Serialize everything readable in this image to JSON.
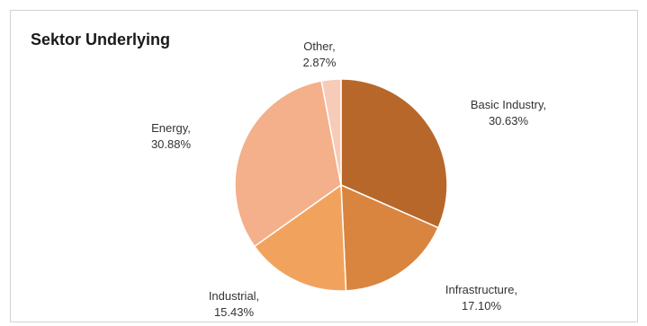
{
  "chart_data": {
    "type": "pie",
    "title": "Sektor Underlying",
    "slices": [
      {
        "label": "Basic Industry",
        "value": 30.63,
        "display": "30.63%",
        "color": "#b8672b"
      },
      {
        "label": "Infrastructure",
        "value": 17.1,
        "display": "17.10%",
        "color": "#d9843f"
      },
      {
        "label": "Industrial",
        "value": 15.43,
        "display": "15.43%",
        "color": "#f1a35e"
      },
      {
        "label": "Energy",
        "value": 30.88,
        "display": "30.88%",
        "color": "#f3b08a"
      },
      {
        "label": "Other",
        "value": 2.87,
        "display": "2.87%",
        "color": "#f6cbb7"
      }
    ],
    "start_angle": "12 o'clock",
    "direction": "clockwise",
    "data_labels": "category name and percentage, outside slices",
    "legend": "none"
  }
}
